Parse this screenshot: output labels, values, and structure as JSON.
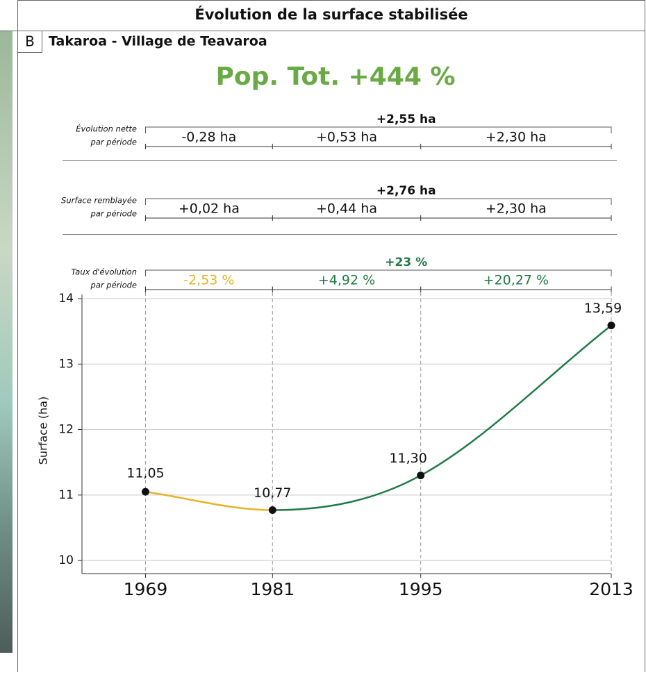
{
  "header": "Évolution de la surface stabilisée",
  "panel_letter": "B",
  "chart_data": {
    "type": "line",
    "title": "Pop. Tot. +444 %",
    "subtitle": "Takaroa - Village de Teavaroa",
    "y_label": "Surface (ha)",
    "x": [
      1969,
      1981,
      1995,
      2013
    ],
    "xlim": [
      1963,
      2013
    ],
    "xticks": [
      1969,
      1981,
      1995,
      2013
    ],
    "ylim": [
      9.8,
      14
    ],
    "yticks": [
      10,
      11,
      12,
      13,
      14
    ],
    "grid": true,
    "series": [
      {
        "name": "Surface",
        "color": "#111111",
        "segment_colors": [
          "#e6b325",
          "#1f7a45",
          "#1f7a45"
        ],
        "values": [
          11.05,
          10.77,
          11.3,
          13.59
        ],
        "value_labels": [
          "11,05",
          "10,77",
          "11,30",
          "13,59"
        ]
      }
    ],
    "period_rows": [
      {
        "label": [
          "Évolution nette",
          "par période"
        ],
        "total": "+2,55 ha",
        "total_color": "#111111",
        "periods": [
          "-0,28 ha",
          "+0,53 ha",
          "+2,30 ha"
        ],
        "colors": [
          "#111111",
          "#111111",
          "#111111"
        ]
      },
      {
        "label": [
          "Surface remblayée",
          "par période"
        ],
        "total": "+2,76 ha",
        "total_color": "#111111",
        "periods": [
          "+0,02 ha",
          "+0,44 ha",
          "+2,30 ha"
        ],
        "colors": [
          "#111111",
          "#111111",
          "#111111"
        ]
      },
      {
        "label": [
          "Taux d'évolution",
          "par période"
        ],
        "total": "+23 %",
        "total_color": "#1f7a45",
        "periods": [
          "-2,53 %",
          "+4,92 %",
          "+20,27 %"
        ],
        "colors": [
          "#e6b325",
          "#1f7a45",
          "#1f7a45"
        ]
      }
    ]
  }
}
